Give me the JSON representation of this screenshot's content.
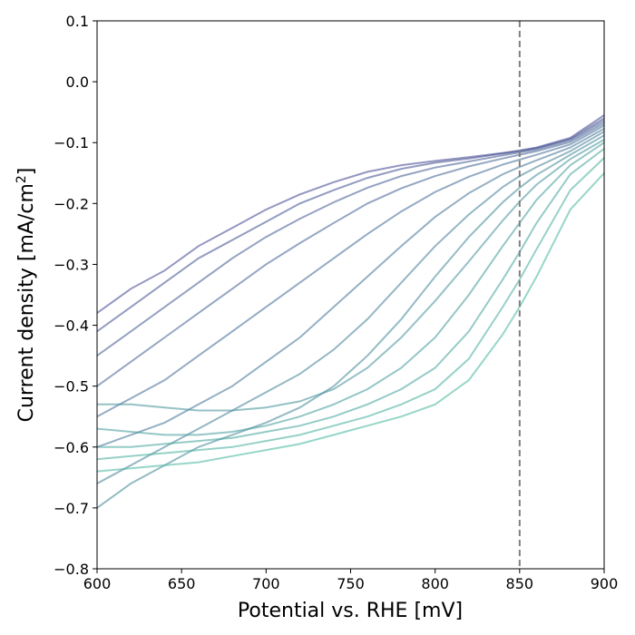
{
  "chart_data": {
    "type": "line",
    "title": "",
    "xlabel": "Potential vs. RHE [mV]",
    "ylabel_main": "Current density [mA/cm",
    "ylabel_sup": "2",
    "ylabel_close": "]",
    "xlim": [
      600,
      900
    ],
    "ylim": [
      -0.8,
      0.1
    ],
    "x_ticks": [
      600,
      650,
      700,
      750,
      800,
      850,
      900
    ],
    "x_tick_labels": [
      "600",
      "650",
      "700",
      "750",
      "800",
      "850",
      "900"
    ],
    "y_ticks": [
      0.1,
      0.0,
      -0.1,
      -0.2,
      -0.3,
      -0.4,
      -0.5,
      -0.6,
      -0.7,
      -0.8
    ],
    "y_tick_labels": [
      "0.1",
      "0.0",
      "−0.1",
      "−0.2",
      "−0.3",
      "−0.4",
      "−0.5",
      "−0.6",
      "−0.7",
      "−0.8"
    ],
    "reference_line": {
      "x": 850,
      "style": "dashed",
      "color": "#808080"
    },
    "grid": false,
    "legend": "none",
    "colormap": {
      "start": "#3b3f8c",
      "end": "#3fb59a"
    },
    "x": [
      600,
      620,
      640,
      660,
      680,
      700,
      720,
      740,
      760,
      780,
      800,
      820,
      840,
      850,
      860,
      880,
      900
    ],
    "series": [
      {
        "values": [
          -0.38,
          -0.34,
          -0.31,
          -0.27,
          -0.24,
          -0.21,
          -0.185,
          -0.165,
          -0.148,
          -0.137,
          -0.13,
          -0.124,
          -0.117,
          -0.113,
          -0.108,
          -0.092,
          -0.055
        ]
      },
      {
        "values": [
          -0.41,
          -0.37,
          -0.33,
          -0.29,
          -0.26,
          -0.23,
          -0.2,
          -0.178,
          -0.158,
          -0.143,
          -0.133,
          -0.126,
          -0.118,
          -0.114,
          -0.109,
          -0.094,
          -0.06
        ]
      },
      {
        "values": [
          -0.45,
          -0.41,
          -0.37,
          -0.33,
          -0.29,
          -0.255,
          -0.225,
          -0.198,
          -0.174,
          -0.155,
          -0.141,
          -0.131,
          -0.121,
          -0.116,
          -0.111,
          -0.096,
          -0.064
        ]
      },
      {
        "values": [
          -0.5,
          -0.46,
          -0.42,
          -0.38,
          -0.34,
          -0.3,
          -0.265,
          -0.232,
          -0.2,
          -0.175,
          -0.155,
          -0.139,
          -0.126,
          -0.12,
          -0.114,
          -0.099,
          -0.068
        ]
      },
      {
        "values": [
          -0.55,
          -0.52,
          -0.49,
          -0.45,
          -0.41,
          -0.37,
          -0.33,
          -0.29,
          -0.25,
          -0.213,
          -0.181,
          -0.156,
          -0.136,
          -0.128,
          -0.12,
          -0.103,
          -0.072
        ]
      },
      {
        "values": [
          -0.6,
          -0.58,
          -0.56,
          -0.53,
          -0.5,
          -0.46,
          -0.42,
          -0.37,
          -0.32,
          -0.27,
          -0.222,
          -0.183,
          -0.152,
          -0.14,
          -0.129,
          -0.108,
          -0.077
        ]
      },
      {
        "values": [
          -0.66,
          -0.63,
          -0.6,
          -0.57,
          -0.54,
          -0.51,
          -0.48,
          -0.44,
          -0.39,
          -0.33,
          -0.27,
          -0.218,
          -0.173,
          -0.155,
          -0.14,
          -0.114,
          -0.082
        ]
      },
      {
        "values": [
          -0.7,
          -0.66,
          -0.63,
          -0.6,
          -0.58,
          -0.56,
          -0.535,
          -0.5,
          -0.45,
          -0.39,
          -0.32,
          -0.255,
          -0.198,
          -0.174,
          -0.153,
          -0.12,
          -0.088
        ]
      },
      {
        "values": [
          -0.53,
          -0.53,
          -0.535,
          -0.54,
          -0.54,
          -0.535,
          -0.525,
          -0.505,
          -0.47,
          -0.42,
          -0.36,
          -0.295,
          -0.228,
          -0.197,
          -0.169,
          -0.127,
          -0.095
        ]
      },
      {
        "values": [
          -0.57,
          -0.575,
          -0.58,
          -0.58,
          -0.575,
          -0.565,
          -0.55,
          -0.53,
          -0.505,
          -0.47,
          -0.42,
          -0.35,
          -0.27,
          -0.232,
          -0.194,
          -0.137,
          -0.1
        ]
      },
      {
        "values": [
          -0.6,
          -0.6,
          -0.595,
          -0.59,
          -0.585,
          -0.575,
          -0.565,
          -0.55,
          -0.53,
          -0.505,
          -0.47,
          -0.41,
          -0.325,
          -0.28,
          -0.232,
          -0.152,
          -0.11
        ]
      },
      {
        "values": [
          -0.62,
          -0.615,
          -0.61,
          -0.605,
          -0.6,
          -0.59,
          -0.58,
          -0.565,
          -0.55,
          -0.53,
          -0.505,
          -0.455,
          -0.37,
          -0.325,
          -0.275,
          -0.178,
          -0.125
        ]
      },
      {
        "values": [
          -0.64,
          -0.635,
          -0.63,
          -0.625,
          -0.615,
          -0.605,
          -0.595,
          -0.58,
          -0.565,
          -0.55,
          -0.53,
          -0.49,
          -0.415,
          -0.37,
          -0.32,
          -0.21,
          -0.15
        ]
      }
    ]
  }
}
